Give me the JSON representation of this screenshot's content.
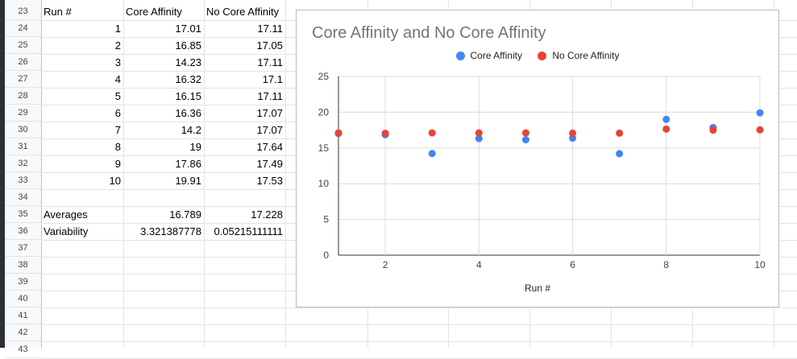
{
  "sheet": {
    "row_numbers": [
      "23",
      "24",
      "25",
      "26",
      "27",
      "28",
      "29",
      "30",
      "31",
      "32",
      "33",
      "34",
      "35",
      "36",
      "37",
      "38",
      "39",
      "40",
      "41",
      "42",
      "43"
    ],
    "header": {
      "run": "Run #",
      "core": "Core Affinity",
      "nocore": "No Core Affinity"
    },
    "rows": [
      {
        "run": "1",
        "core": "17.01",
        "nocore": "17.11"
      },
      {
        "run": "2",
        "core": "16.85",
        "nocore": "17.05"
      },
      {
        "run": "3",
        "core": "14.23",
        "nocore": "17.11"
      },
      {
        "run": "4",
        "core": "16.32",
        "nocore": "17.1"
      },
      {
        "run": "5",
        "core": "16.15",
        "nocore": "17.11"
      },
      {
        "run": "6",
        "core": "16.36",
        "nocore": "17.07"
      },
      {
        "run": "7",
        "core": "14.2",
        "nocore": "17.07"
      },
      {
        "run": "8",
        "core": "19",
        "nocore": "17.64"
      },
      {
        "run": "9",
        "core": "17.86",
        "nocore": "17.49"
      },
      {
        "run": "10",
        "core": "19.91",
        "nocore": "17.53"
      }
    ],
    "averages": {
      "label": "Averages",
      "core": "16.789",
      "nocore": "17.228"
    },
    "variability": {
      "label": "Variability",
      "core": "3.321387778",
      "nocore": "0.05215111111"
    }
  },
  "chart_data": {
    "type": "scatter",
    "title": "Core Affinity and No Core Affinity",
    "xlabel": "Run #",
    "ylabel": "",
    "xlim": [
      1,
      10
    ],
    "ylim": [
      0,
      25
    ],
    "xticks": [
      2,
      4,
      6,
      8,
      10
    ],
    "yticks": [
      0,
      5,
      10,
      15,
      20,
      25
    ],
    "grid": true,
    "legend_position": "top",
    "x": [
      1,
      2,
      3,
      4,
      5,
      6,
      7,
      8,
      9,
      10
    ],
    "series": [
      {
        "name": "Core Affinity",
        "color": "#4285f4",
        "values": [
          17.01,
          16.85,
          14.23,
          16.32,
          16.15,
          16.36,
          14.2,
          19,
          17.86,
          19.91
        ]
      },
      {
        "name": "No Core Affinity",
        "color": "#ea4335",
        "values": [
          17.11,
          17.05,
          17.11,
          17.1,
          17.11,
          17.07,
          17.07,
          17.64,
          17.49,
          17.53
        ]
      }
    ]
  }
}
